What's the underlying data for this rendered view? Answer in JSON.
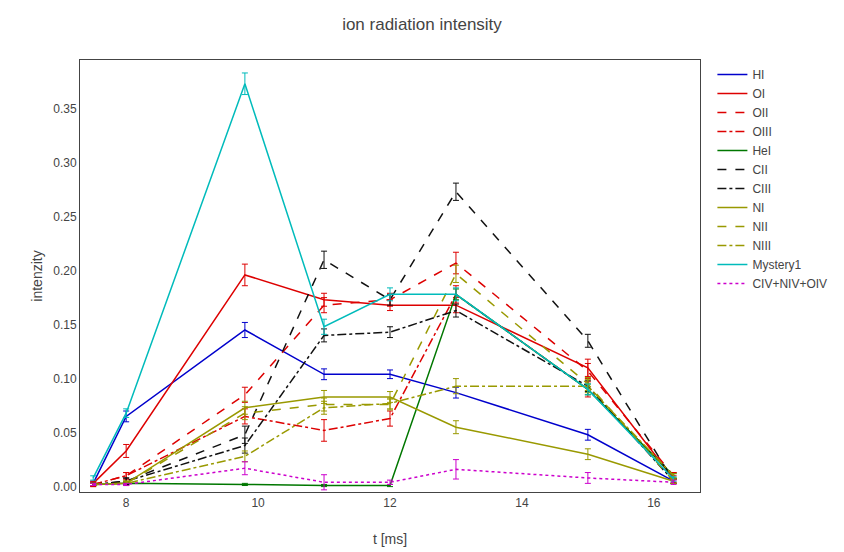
{
  "chart_data": {
    "type": "line",
    "title": "ion radiation intensity",
    "xlabel": "t [ms]",
    "ylabel": "intenzity",
    "x": [
      7.5,
      8.0,
      9.8,
      11.0,
      12.0,
      13.0,
      15.0,
      16.3
    ],
    "series": [
      {
        "name": "HI",
        "color": "#0000cc",
        "line_style": "solid",
        "values": [
          0.003,
          0.065,
          0.145,
          0.104,
          0.104,
          0.087,
          0.048,
          0.005
        ],
        "yerr": [
          0.002,
          0.005,
          0.007,
          0.005,
          0.004,
          0.005,
          0.005,
          0.002
        ]
      },
      {
        "name": "OI",
        "color": "#dd0000",
        "line_style": "solid",
        "values": [
          0.003,
          0.033,
          0.196,
          0.173,
          0.168,
          0.168,
          0.11,
          0.007
        ],
        "yerr": [
          0.002,
          0.006,
          0.01,
          0.006,
          0.005,
          0.007,
          0.008,
          0.003
        ]
      },
      {
        "name": "OII",
        "color": "#dd0000",
        "line_style": "dashed",
        "values": [
          0.002,
          0.01,
          0.085,
          0.168,
          0.173,
          0.207,
          0.107,
          0.01
        ],
        "yerr": [
          0.002,
          0.003,
          0.007,
          0.007,
          0.006,
          0.01,
          0.007,
          0.003
        ]
      },
      {
        "name": "OIII",
        "color": "#dd0000",
        "line_style": "dashdot",
        "values": [
          0.002,
          0.01,
          0.065,
          0.052,
          0.063,
          0.178,
          0.09,
          0.01
        ],
        "yerr": [
          0.002,
          0.003,
          0.007,
          0.01,
          0.007,
          0.008,
          0.007,
          0.003
        ]
      },
      {
        "name": "HeI",
        "color": "#007700",
        "line_style": "solid",
        "values": [
          0.002,
          0.003,
          0.002,
          0.001,
          0.001,
          0.178,
          0.09,
          0.01
        ],
        "yerr": [
          0.001,
          0.001,
          0.001,
          0.001,
          0.001,
          0.005,
          0.005,
          0.002
        ]
      },
      {
        "name": "CII",
        "color": "#111111",
        "line_style": "dashed",
        "values": [
          0.002,
          0.005,
          0.048,
          0.21,
          0.173,
          0.273,
          0.135,
          0.005
        ],
        "yerr": [
          0.001,
          0.003,
          0.008,
          0.008,
          0.005,
          0.008,
          0.006,
          0.002
        ]
      },
      {
        "name": "CIII",
        "color": "#111111",
        "line_style": "dashdot",
        "values": [
          0.002,
          0.005,
          0.038,
          0.14,
          0.143,
          0.163,
          0.093,
          0.005
        ],
        "yerr": [
          0.001,
          0.003,
          0.007,
          0.006,
          0.005,
          0.006,
          0.005,
          0.002
        ]
      },
      {
        "name": "NI",
        "color": "#999900",
        "line_style": "solid",
        "values": [
          0.002,
          0.003,
          0.073,
          0.083,
          0.083,
          0.055,
          0.03,
          0.005
        ],
        "yerr": [
          0.001,
          0.002,
          0.006,
          0.006,
          0.005,
          0.006,
          0.005,
          0.002
        ]
      },
      {
        "name": "NII",
        "color": "#999900",
        "line_style": "dashed",
        "values": [
          0.002,
          0.003,
          0.068,
          0.076,
          0.076,
          0.197,
          0.095,
          0.005
        ],
        "yerr": [
          0.001,
          0.002,
          0.006,
          0.006,
          0.005,
          0.008,
          0.006,
          0.002
        ]
      },
      {
        "name": "NIII",
        "color": "#999900",
        "line_style": "dashdot",
        "values": [
          0.002,
          0.003,
          0.028,
          0.073,
          0.077,
          0.093,
          0.093,
          0.01
        ],
        "yerr": [
          0.001,
          0.002,
          0.005,
          0.006,
          0.005,
          0.007,
          0.006,
          0.002
        ]
      },
      {
        "name": "Mystery1",
        "color": "#00bbbb",
        "line_style": "solid",
        "values": [
          0.008,
          0.068,
          0.373,
          0.148,
          0.178,
          0.178,
          0.09,
          0.007
        ],
        "yerr": [
          0.002,
          0.004,
          0.01,
          0.007,
          0.006,
          0.006,
          0.005,
          0.002
        ]
      },
      {
        "name": "CIV+NIV+OIV",
        "color": "#cc00cc",
        "line_style": "dotted",
        "values": [
          0.002,
          0.002,
          0.017,
          0.004,
          0.004,
          0.016,
          0.008,
          0.004
        ],
        "yerr": [
          0.001,
          0.001,
          0.006,
          0.007,
          0.002,
          0.009,
          0.005,
          0.002
        ]
      }
    ],
    "xlim": [
      7.3,
      16.7
    ],
    "ylim": [
      -0.005,
      0.395
    ],
    "xticks": [
      8,
      10,
      12,
      14,
      16
    ],
    "yticks": [
      {
        "value": 0,
        "label": "0.00"
      },
      0.05,
      {
        "value": 0.1,
        "label": "0.10"
      },
      0.15,
      {
        "value": 0.2,
        "label": "0.20"
      },
      0.25,
      {
        "value": 0.3,
        "label": "0.30"
      },
      0.35
    ],
    "grid": false,
    "legend": "right"
  }
}
